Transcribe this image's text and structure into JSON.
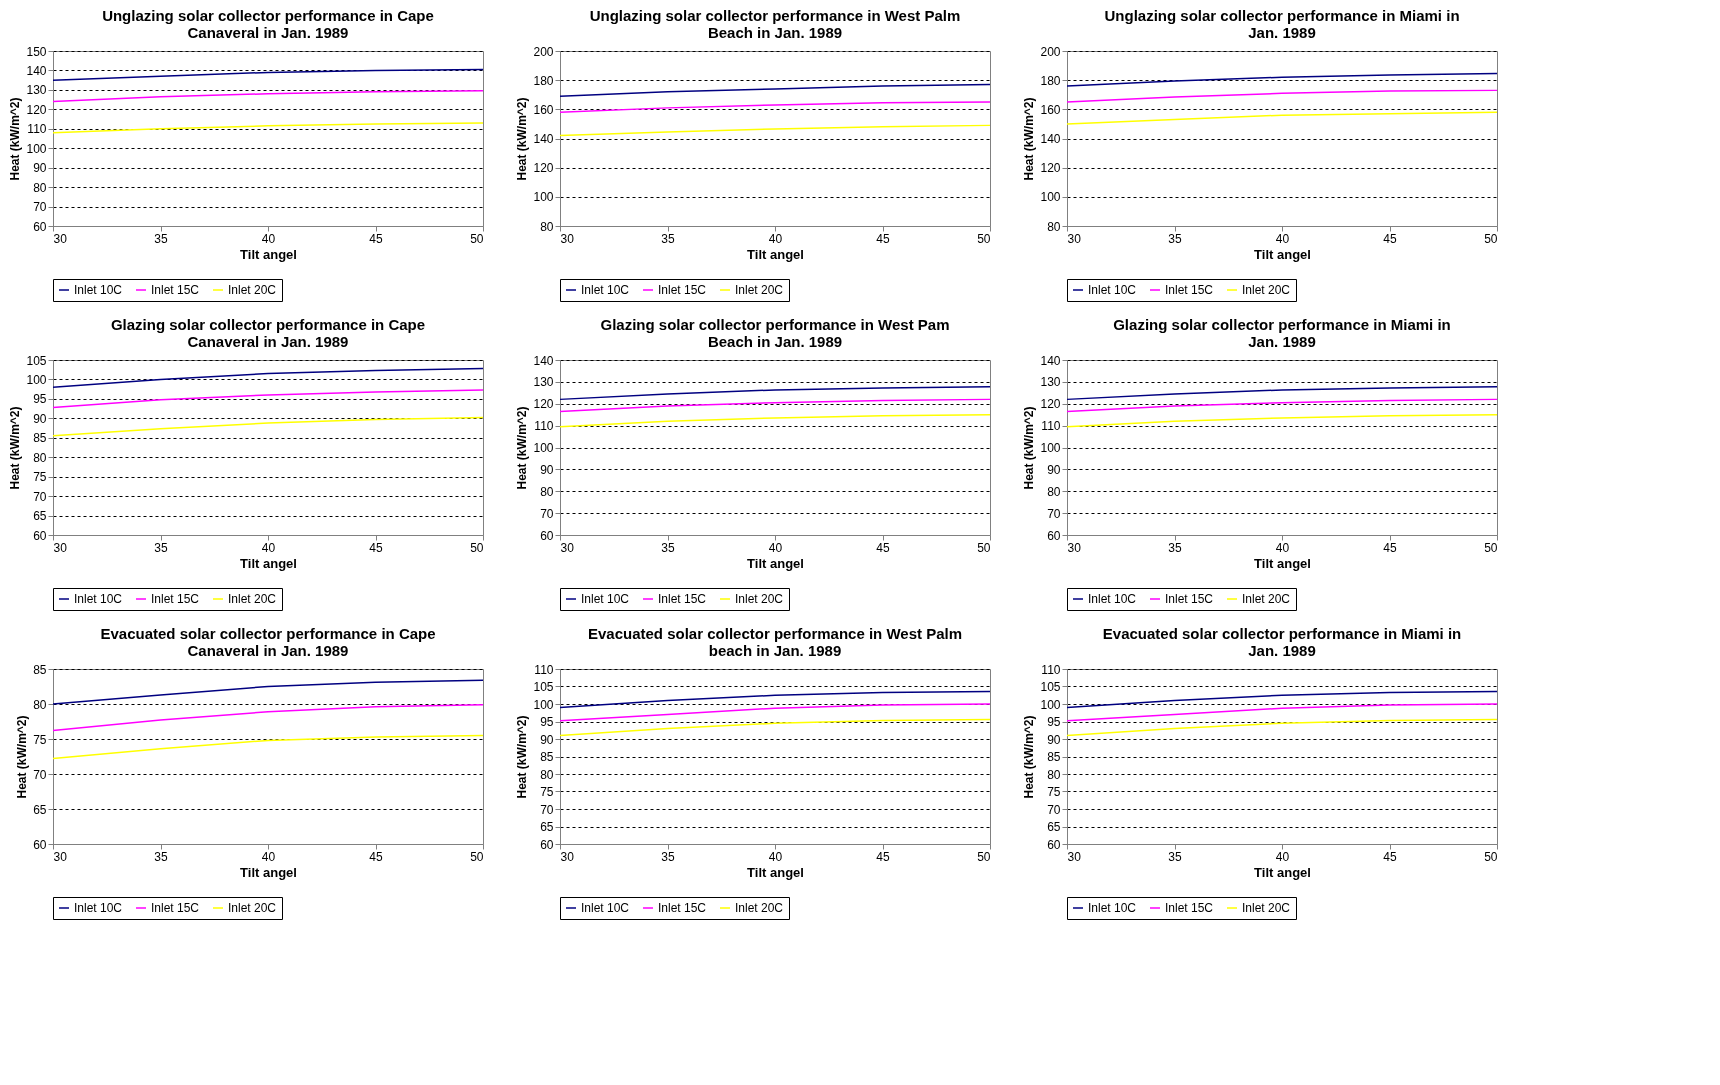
{
  "chart_data": [
    {
      "type": "line",
      "title": "Unglazing solar collector performance in Cape Canaveral in Jan. 1989",
      "xlabel": "Tilt angel",
      "ylabel": "Heat (kW/m^2)",
      "x": [
        30,
        35,
        40,
        45,
        50
      ],
      "xlim": [
        30,
        50
      ],
      "xticks": [
        30,
        35,
        40,
        45,
        50
      ],
      "ylim": [
        60,
        150
      ],
      "yticks": [
        60,
        70,
        80,
        90,
        100,
        110,
        120,
        130,
        140,
        150
      ],
      "grid": "y",
      "legend": "bottom",
      "series": [
        {
          "name": "Inlet 10C",
          "color": "#000080",
          "values": [
            135,
            137,
            139,
            140,
            140.5
          ]
        },
        {
          "name": "Inlet 15C",
          "color": "#ff00ff",
          "values": [
            124,
            126.5,
            128,
            129,
            129.5
          ]
        },
        {
          "name": "Inlet 20C",
          "color": "#ffff00",
          "values": [
            108,
            110,
            111.5,
            112.5,
            113
          ]
        }
      ]
    },
    {
      "type": "line",
      "title": "Unglazing solar collector performance in West Palm Beach in Jan. 1989",
      "xlabel": "Tilt angel",
      "ylabel": "Heat (kW/m^2)",
      "x": [
        30,
        35,
        40,
        45,
        50
      ],
      "xlim": [
        30,
        50
      ],
      "xticks": [
        30,
        35,
        40,
        45,
        50
      ],
      "ylim": [
        80,
        200
      ],
      "yticks": [
        80,
        100,
        120,
        140,
        160,
        180,
        200
      ],
      "grid": "y",
      "legend": "bottom",
      "series": [
        {
          "name": "Inlet 10C",
          "color": "#000080",
          "values": [
            169,
            172,
            174,
            176,
            177
          ]
        },
        {
          "name": "Inlet 15C",
          "color": "#ff00ff",
          "values": [
            158,
            161,
            163,
            164.5,
            165
          ]
        },
        {
          "name": "Inlet 20C",
          "color": "#ffff00",
          "values": [
            142,
            144.5,
            146.5,
            148,
            149
          ]
        }
      ]
    },
    {
      "type": "line",
      "title": "Unglazing solar collector performance in Miami in Jan. 1989",
      "xlabel": "Tilt angel",
      "ylabel": "Heat (kW/m^2)",
      "x": [
        30,
        35,
        40,
        45,
        50
      ],
      "xlim": [
        30,
        50
      ],
      "xticks": [
        30,
        35,
        40,
        45,
        50
      ],
      "ylim": [
        80,
        200
      ],
      "yticks": [
        80,
        100,
        120,
        140,
        160,
        180,
        200
      ],
      "grid": "y",
      "legend": "bottom",
      "series": [
        {
          "name": "Inlet 10C",
          "color": "#000080",
          "values": [
            176,
            179.5,
            182,
            183.5,
            184.5
          ]
        },
        {
          "name": "Inlet 15C",
          "color": "#ff00ff",
          "values": [
            165,
            168.5,
            171,
            172.5,
            173
          ]
        },
        {
          "name": "Inlet 20C",
          "color": "#ffff00",
          "values": [
            150,
            153,
            156,
            157,
            158
          ]
        }
      ]
    },
    {
      "type": "line",
      "title": "Glazing solar collector performance in Cape Canaveral in Jan. 1989",
      "xlabel": "Tilt angel",
      "ylabel": "Heat (kW/m^2)",
      "x": [
        30,
        35,
        40,
        45,
        50
      ],
      "xlim": [
        30,
        50
      ],
      "xticks": [
        30,
        35,
        40,
        45,
        50
      ],
      "ylim": [
        60,
        105
      ],
      "yticks": [
        60,
        65,
        70,
        75,
        80,
        85,
        90,
        95,
        100,
        105
      ],
      "grid": "y",
      "legend": "bottom",
      "series": [
        {
          "name": "Inlet 10C",
          "color": "#000080",
          "values": [
            98,
            100,
            101.5,
            102.3,
            102.8
          ]
        },
        {
          "name": "Inlet 15C",
          "color": "#ff00ff",
          "values": [
            92.8,
            94.8,
            96,
            96.8,
            97.3
          ]
        },
        {
          "name": "Inlet 20C",
          "color": "#ffff00",
          "values": [
            85.5,
            87.3,
            88.8,
            89.7,
            90.2
          ]
        }
      ]
    },
    {
      "type": "line",
      "title": "Glazing solar collector performance in West Pam Beach in Jan. 1989",
      "xlabel": "Tilt angel",
      "ylabel": "Heat (kW/m^2)",
      "x": [
        30,
        35,
        40,
        45,
        50
      ],
      "xlim": [
        30,
        50
      ],
      "xticks": [
        30,
        35,
        40,
        45,
        50
      ],
      "ylim": [
        60,
        140
      ],
      "yticks": [
        60,
        70,
        80,
        90,
        100,
        110,
        120,
        130,
        140
      ],
      "grid": "y",
      "legend": "bottom",
      "series": [
        {
          "name": "Inlet 10C",
          "color": "#000080",
          "values": [
            122,
            124.5,
            126.3,
            127.2,
            127.8
          ]
        },
        {
          "name": "Inlet 15C",
          "color": "#ff00ff",
          "values": [
            116.5,
            119,
            120.5,
            121.5,
            122
          ]
        },
        {
          "name": "Inlet 20C",
          "color": "#ffff00",
          "values": [
            109.5,
            112,
            113.5,
            114.5,
            115
          ]
        }
      ]
    },
    {
      "type": "line",
      "title": "Glazing solar collector performance in Miami in Jan. 1989",
      "xlabel": "Tilt angel",
      "ylabel": "Heat (kW/m^2)",
      "x": [
        30,
        35,
        40,
        45,
        50
      ],
      "xlim": [
        30,
        50
      ],
      "xticks": [
        30,
        35,
        40,
        45,
        50
      ],
      "ylim": [
        60,
        140
      ],
      "yticks": [
        60,
        70,
        80,
        90,
        100,
        110,
        120,
        130,
        140
      ],
      "grid": "y",
      "legend": "bottom",
      "series": [
        {
          "name": "Inlet 10C",
          "color": "#000080",
          "values": [
            122,
            124.5,
            126.3,
            127.2,
            127.8
          ]
        },
        {
          "name": "Inlet 15C",
          "color": "#ff00ff",
          "values": [
            116.5,
            119,
            120.5,
            121.5,
            122
          ]
        },
        {
          "name": "Inlet 20C",
          "color": "#ffff00",
          "values": [
            109.5,
            112,
            113.5,
            114.5,
            115
          ]
        }
      ]
    },
    {
      "type": "line",
      "title": "Evacuated solar collector performance in Cape Canaveral in Jan. 1989",
      "xlabel": "Tilt angel",
      "ylabel": "Heat (kW/m^2)",
      "x": [
        30,
        35,
        40,
        45,
        50
      ],
      "xlim": [
        30,
        50
      ],
      "xticks": [
        30,
        35,
        40,
        45,
        50
      ],
      "ylim": [
        60,
        85
      ],
      "yticks": [
        60,
        65,
        70,
        75,
        80,
        85
      ],
      "grid": "y",
      "legend": "bottom",
      "series": [
        {
          "name": "Inlet 10C",
          "color": "#000080",
          "values": [
            80,
            81.3,
            82.5,
            83.1,
            83.4
          ]
        },
        {
          "name": "Inlet 15C",
          "color": "#ff00ff",
          "values": [
            76.2,
            77.7,
            78.9,
            79.6,
            79.9
          ]
        },
        {
          "name": "Inlet 20C",
          "color": "#ffff00",
          "values": [
            72.2,
            73.6,
            74.8,
            75.3,
            75.5
          ]
        }
      ]
    },
    {
      "type": "line",
      "title": "Evacuated solar collector performance in West Palm beach in Jan. 1989",
      "xlabel": "Tilt angel",
      "ylabel": "Heat (kW/m^2)",
      "x": [
        30,
        35,
        40,
        45,
        50
      ],
      "xlim": [
        30,
        50
      ],
      "xticks": [
        30,
        35,
        40,
        45,
        50
      ],
      "ylim": [
        60,
        110
      ],
      "yticks": [
        60,
        65,
        70,
        75,
        80,
        85,
        90,
        95,
        100,
        105,
        110
      ],
      "grid": "y",
      "legend": "bottom",
      "series": [
        {
          "name": "Inlet 10C",
          "color": "#000080",
          "values": [
            99,
            101,
            102.5,
            103.3,
            103.6
          ]
        },
        {
          "name": "Inlet 15C",
          "color": "#ff00ff",
          "values": [
            95.2,
            97,
            98.8,
            99.7,
            100
          ]
        },
        {
          "name": "Inlet 20C",
          "color": "#ffff00",
          "values": [
            91,
            93,
            94.5,
            95.3,
            95.6
          ]
        }
      ]
    },
    {
      "type": "line",
      "title": "Evacuated solar collector performance in Miami in Jan. 1989",
      "xlabel": "Tilt angel",
      "ylabel": "Heat (kW/m^2)",
      "x": [
        30,
        35,
        40,
        45,
        50
      ],
      "xlim": [
        30,
        50
      ],
      "xticks": [
        30,
        35,
        40,
        45,
        50
      ],
      "ylim": [
        60,
        110
      ],
      "yticks": [
        60,
        65,
        70,
        75,
        80,
        85,
        90,
        95,
        100,
        105,
        110
      ],
      "grid": "y",
      "legend": "bottom",
      "series": [
        {
          "name": "Inlet 10C",
          "color": "#000080",
          "values": [
            99,
            101,
            102.5,
            103.3,
            103.6
          ]
        },
        {
          "name": "Inlet 15C",
          "color": "#ff00ff",
          "values": [
            95.2,
            97,
            98.8,
            99.7,
            100
          ]
        },
        {
          "name": "Inlet 20C",
          "color": "#ffff00",
          "values": [
            91,
            93,
            94.5,
            95.3,
            95.6
          ]
        }
      ]
    }
  ]
}
